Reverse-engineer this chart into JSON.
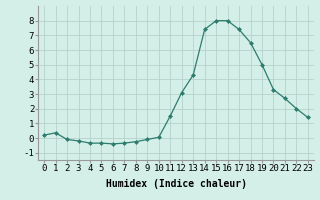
{
  "x": [
    0,
    1,
    2,
    3,
    4,
    5,
    6,
    7,
    8,
    9,
    10,
    11,
    12,
    13,
    14,
    15,
    16,
    17,
    18,
    19,
    20,
    21,
    22,
    23
  ],
  "y": [
    0.2,
    0.35,
    -0.1,
    -0.2,
    -0.35,
    -0.35,
    -0.4,
    -0.35,
    -0.25,
    -0.1,
    0.05,
    1.5,
    3.1,
    4.3,
    7.4,
    8.0,
    8.0,
    7.4,
    6.5,
    5.0,
    3.3,
    2.7,
    2.0,
    1.4
  ],
  "line_color": "#2d7d6e",
  "marker": "D",
  "marker_size": 2,
  "bg_color": "#d4eee8",
  "grid_color": "#b0ccc8",
  "xlabel": "Humidex (Indice chaleur)",
  "ylabel": "",
  "ylim": [
    -1.5,
    9.0
  ],
  "xlim": [
    -0.5,
    23.5
  ],
  "yticks": [
    -1,
    0,
    1,
    2,
    3,
    4,
    5,
    6,
    7,
    8
  ],
  "xticks": [
    0,
    1,
    2,
    3,
    4,
    5,
    6,
    7,
    8,
    9,
    10,
    11,
    12,
    13,
    14,
    15,
    16,
    17,
    18,
    19,
    20,
    21,
    22,
    23
  ],
  "xlabel_fontsize": 7,
  "tick_fontsize": 6.5
}
